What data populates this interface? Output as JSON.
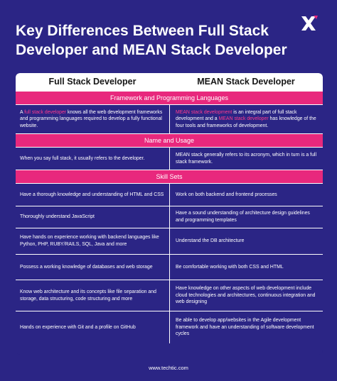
{
  "title": "Key Differences Between Full Stack Developer and MEAN Stack Developer",
  "columns": [
    "Full Stack Developer",
    "MEAN Stack Developer"
  ],
  "sections": [
    {
      "label": "Framework and Programming Languages",
      "rows": [
        {
          "left": [
            {
              "t": "A ",
              "hl": false
            },
            {
              "t": "full stack developer",
              "hl": true
            },
            {
              "t": " knows all the web development frameworks and programming languages required to develop a fully functional website.",
              "hl": false
            }
          ],
          "right": [
            {
              "t": "MEAN stack development",
              "hl": true
            },
            {
              "t": " is an integral part of full stack development and a ",
              "hl": false
            },
            {
              "t": "MEAN stack developer",
              "hl": true
            },
            {
              "t": " has knowledge of the four tools and frameworks of development.",
              "hl": false
            }
          ]
        }
      ]
    },
    {
      "label": "Name and Usage",
      "rows": [
        {
          "left": [
            {
              "t": "When you say full stack, it usually refers to the developer.",
              "hl": false
            }
          ],
          "right": [
            {
              "t": "MEAN stack generally refers to its acronym, which in turn is a full stack framework.",
              "hl": false
            }
          ]
        }
      ]
    },
    {
      "label": "Skill Sets",
      "rows": [
        {
          "left": [
            {
              "t": "Have a thorough knowledge and understanding of HTML and CSS",
              "hl": false
            }
          ],
          "right": [
            {
              "t": "Work on both backend and frontend processes",
              "hl": false
            }
          ]
        },
        {
          "left": [
            {
              "t": "Thoroughly understand JavaScript",
              "hl": false
            }
          ],
          "right": [
            {
              "t": "Have a sound understanding of architecture design guidelines and programming templates",
              "hl": false
            }
          ]
        },
        {
          "left": [
            {
              "t": "Have hands on experience working with backend languages like Python, PHP, RUBY/RAILS, SQL, Java and more",
              "hl": false
            }
          ],
          "right": [
            {
              "t": "Understand the DB architecture",
              "hl": false
            }
          ]
        },
        {
          "left": [
            {
              "t": "Possess a working knowledge of databases and web storage",
              "hl": false
            }
          ],
          "right": [
            {
              "t": "Be comfortable working with both CSS and HTML",
              "hl": false
            }
          ]
        },
        {
          "left": [
            {
              "t": "Know web architecture and its concepts like file separation and storage, data structuring, code structuring and more",
              "hl": false
            }
          ],
          "right": [
            {
              "t": "Have knowledge on other aspects of web development include cloud technologies and architectures, continuous integration and web designing",
              "hl": false
            }
          ]
        },
        {
          "left": [
            {
              "t": "Hands on experience with Git and a profile on GitHub",
              "hl": false
            }
          ],
          "right": [
            {
              "t": "Be able to develop app/websites in the Agile development framework and have an understanding of software development cycles",
              "hl": false
            }
          ]
        }
      ]
    }
  ],
  "footer": "www.techtic.com",
  "colors": {
    "background": "#2b2585",
    "accent": "#e8287d",
    "highlight": "#ff3c8e"
  }
}
